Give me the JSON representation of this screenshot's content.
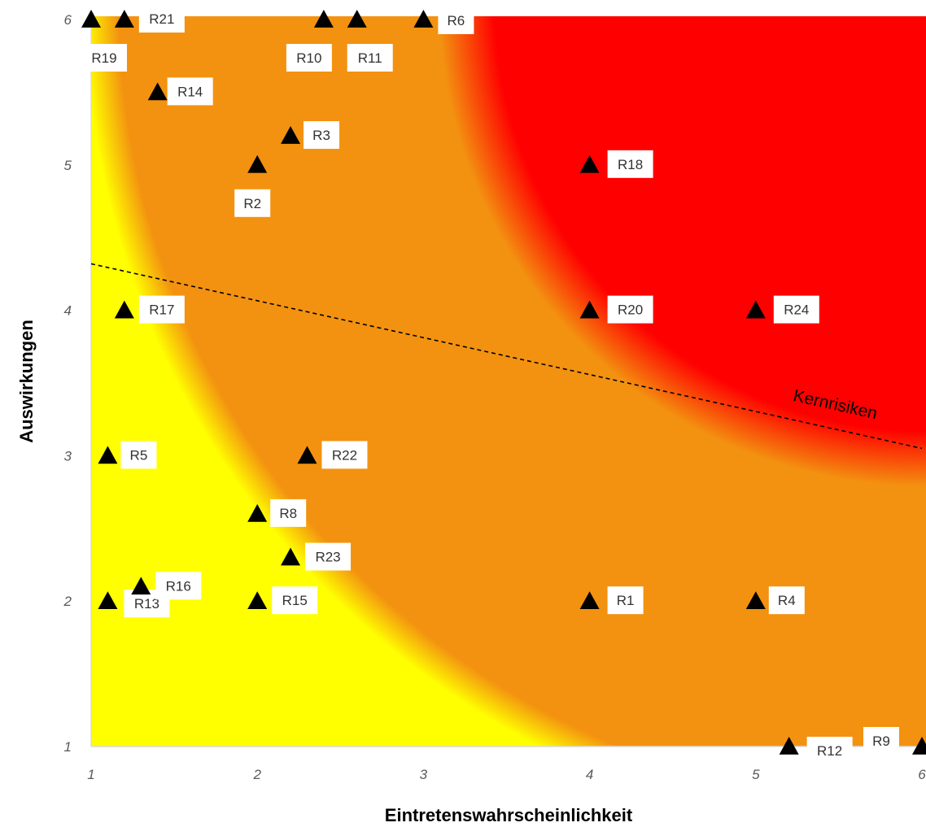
{
  "chart_data": {
    "type": "scatter",
    "xlabel": "Eintretenswahrscheinlichkeit",
    "ylabel": "Auswirkungen",
    "xlim": [
      1,
      6
    ],
    "ylim": [
      1,
      6
    ],
    "xticks": [
      "1",
      "2",
      "3",
      "4",
      "5",
      "6"
    ],
    "yticks": [
      "1",
      "2",
      "3",
      "4",
      "5",
      "6"
    ],
    "grid": false,
    "legend": "none",
    "background_zones": [
      {
        "name": "low",
        "color": "#FFFF00"
      },
      {
        "name": "medium",
        "color": "#F39210"
      },
      {
        "name": "high",
        "color": "#FF0000"
      }
    ],
    "marker": {
      "shape": "triangle",
      "color": "#000000"
    },
    "threshold_line": {
      "label": "Kernrisiken",
      "style": "dashed",
      "x": [
        1,
        6
      ],
      "y": [
        4.32,
        3.05
      ]
    },
    "points": [
      {
        "label": "R1",
        "x": 4.0,
        "y": 2.0
      },
      {
        "label": "R2",
        "x": 2.0,
        "y": 5.0
      },
      {
        "label": "R3",
        "x": 2.2,
        "y": 5.2
      },
      {
        "label": "R4",
        "x": 5.0,
        "y": 2.0
      },
      {
        "label": "R5",
        "x": 1.1,
        "y": 3.0
      },
      {
        "label": "R6",
        "x": 3.0,
        "y": 6.0
      },
      {
        "label": "R8",
        "x": 2.0,
        "y": 2.6
      },
      {
        "label": "R9",
        "x": 6.0,
        "y": 1.0
      },
      {
        "label": "R10",
        "x": 2.4,
        "y": 6.0
      },
      {
        "label": "R11",
        "x": 2.6,
        "y": 6.0
      },
      {
        "label": "R12",
        "x": 5.2,
        "y": 1.0
      },
      {
        "label": "R13",
        "x": 1.1,
        "y": 2.0
      },
      {
        "label": "R14",
        "x": 1.4,
        "y": 5.5
      },
      {
        "label": "R15",
        "x": 2.0,
        "y": 2.0
      },
      {
        "label": "R16",
        "x": 1.3,
        "y": 2.1
      },
      {
        "label": "R17",
        "x": 1.2,
        "y": 4.0
      },
      {
        "label": "R18",
        "x": 4.0,
        "y": 5.0
      },
      {
        "label": "R19",
        "x": 1.0,
        "y": 6.0
      },
      {
        "label": "R20",
        "x": 4.0,
        "y": 4.0
      },
      {
        "label": "R21",
        "x": 1.2,
        "y": 6.0
      },
      {
        "label": "R22",
        "x": 2.3,
        "y": 3.0
      },
      {
        "label": "R23",
        "x": 2.2,
        "y": 2.3
      },
      {
        "label": "R24",
        "x": 5.0,
        "y": 4.0
      }
    ]
  }
}
